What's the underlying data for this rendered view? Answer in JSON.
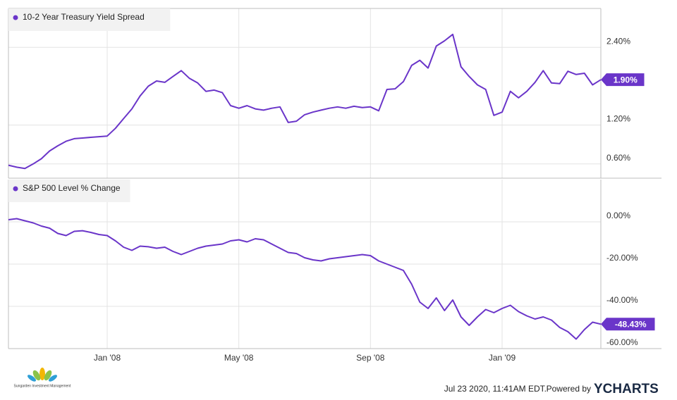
{
  "chart_data": [
    {
      "type": "line",
      "series": [
        {
          "name": "10-2 Year Treasury Yield Spread",
          "color": "#6a35c9",
          "values": [
            0.58,
            0.55,
            0.53,
            0.6,
            0.68,
            0.8,
            0.88,
            0.95,
            0.99,
            1.0,
            1.01,
            1.02,
            1.03,
            1.15,
            1.3,
            1.45,
            1.65,
            1.8,
            1.88,
            1.86,
            1.95,
            2.04,
            1.92,
            1.85,
            1.72,
            1.74,
            1.7,
            1.5,
            1.46,
            1.5,
            1.45,
            1.43,
            1.46,
            1.48,
            1.24,
            1.26,
            1.36,
            1.4,
            1.43,
            1.46,
            1.48,
            1.46,
            1.49,
            1.47,
            1.48,
            1.42,
            1.75,
            1.76,
            1.87,
            2.12,
            2.2,
            2.08,
            2.42,
            2.5,
            2.6,
            2.1,
            1.95,
            1.82,
            1.75,
            1.35,
            1.4,
            1.72,
            1.62,
            1.72,
            1.86,
            2.04,
            1.85,
            1.84,
            2.03,
            1.98,
            2.0,
            1.82,
            1.9
          ],
          "last_value_label": "1.90%"
        }
      ],
      "xlim": [
        0,
        72
      ],
      "xticks": [
        12,
        28,
        44,
        60
      ],
      "ylim": [
        0.38,
        3.0
      ],
      "yticks": [
        {
          "value": 0.6,
          "label": "0.60%"
        },
        {
          "value": 1.2,
          "label": "1.20%"
        },
        {
          "value": 2.4,
          "label": "2.40%"
        }
      ],
      "grid": true
    },
    {
      "type": "line",
      "series": [
        {
          "name": "S&P 500 Level % Change",
          "color": "#6a35c9",
          "values": [
            1.0,
            1.5,
            0.5,
            -0.5,
            -2.0,
            -3.0,
            -5.5,
            -6.5,
            -4.5,
            -4.2,
            -5.0,
            -6.0,
            -6.5,
            -9.0,
            -12.0,
            -13.5,
            -11.5,
            -11.8,
            -12.5,
            -12.0,
            -14.0,
            -15.5,
            -14.0,
            -12.5,
            -11.5,
            -11.0,
            -10.5,
            -9.0,
            -8.5,
            -9.5,
            -8.0,
            -8.5,
            -10.5,
            -12.5,
            -14.5,
            -15.0,
            -17.0,
            -18.0,
            -18.5,
            -17.5,
            -17.0,
            -16.5,
            -16.0,
            -15.5,
            -16.0,
            -18.5,
            -20.0,
            -21.5,
            -23.0,
            -29.5,
            -38.0,
            -41.0,
            -36.0,
            -42.0,
            -37.0,
            -45.0,
            -49.0,
            -45.0,
            -41.5,
            -43.0,
            -41.0,
            -39.5,
            -42.5,
            -44.5,
            -46.0,
            -45.0,
            -46.5,
            -50.0,
            -52.0,
            -55.5,
            -51.0,
            -47.5,
            -48.43
          ],
          "last_value_label": "-48.43%"
        }
      ],
      "xlim": [
        0,
        72
      ],
      "xticks": [
        {
          "value": 12,
          "label": "Jan '08"
        },
        {
          "value": 28,
          "label": "May '08"
        },
        {
          "value": 44,
          "label": "Sep '08"
        },
        {
          "value": 60,
          "label": "Jan '09"
        }
      ],
      "ylim": [
        -60,
        20
      ],
      "yticks": [
        {
          "value": 0,
          "label": "0.00%"
        },
        {
          "value": -20,
          "label": "-20.00%"
        },
        {
          "value": -40,
          "label": "-40.00%"
        },
        {
          "value": -60,
          "label": "-60.00%"
        }
      ],
      "grid": true
    }
  ],
  "footer": {
    "logo_text": "Sungarden Investment Management",
    "timestamp": "Jul 23 2020, 11:41AM EDT.",
    "powered_by": "Powered by",
    "brand": "YCHARTS"
  }
}
